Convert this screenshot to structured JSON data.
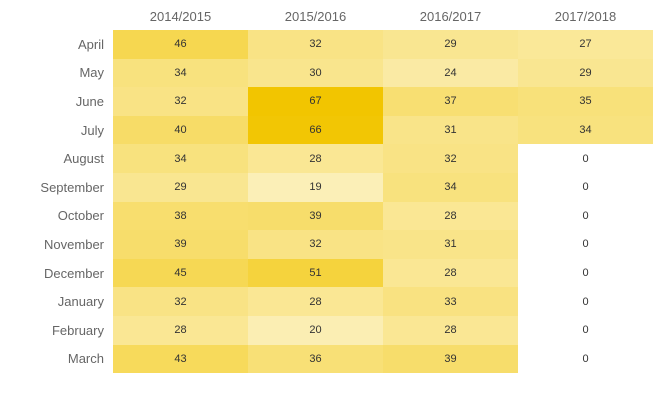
{
  "chart_data": {
    "type": "heatmap",
    "title": "",
    "x_categories": [
      "2014/2015",
      "2015/2016",
      "2016/2017",
      "2017/2018"
    ],
    "y_categories": [
      "April",
      "May",
      "June",
      "July",
      "August",
      "September",
      "October",
      "November",
      "December",
      "January",
      "February",
      "March"
    ],
    "series": [
      {
        "name": "2014/2015",
        "values": [
          46,
          34,
          32,
          40,
          34,
          29,
          38,
          39,
          45,
          32,
          28,
          43
        ]
      },
      {
        "name": "2015/2016",
        "values": [
          32,
          30,
          67,
          66,
          28,
          19,
          39,
          32,
          51,
          28,
          20,
          36
        ]
      },
      {
        "name": "2016/2017",
        "values": [
          29,
          24,
          37,
          31,
          32,
          34,
          28,
          31,
          28,
          33,
          28,
          39
        ]
      },
      {
        "name": "2017/2018",
        "values": [
          27,
          29,
          35,
          34,
          0,
          0,
          0,
          0,
          0,
          0,
          0,
          0
        ]
      }
    ],
    "color_scale": {
      "min": 0,
      "max": 67,
      "min_color": "#FFFFFF",
      "max_color": "#F2C500"
    },
    "legend_position": "none",
    "grid": "off",
    "axis_label_color": "#666666",
    "cell_label_color": "#333333",
    "background_color": "#FFFFFF"
  }
}
